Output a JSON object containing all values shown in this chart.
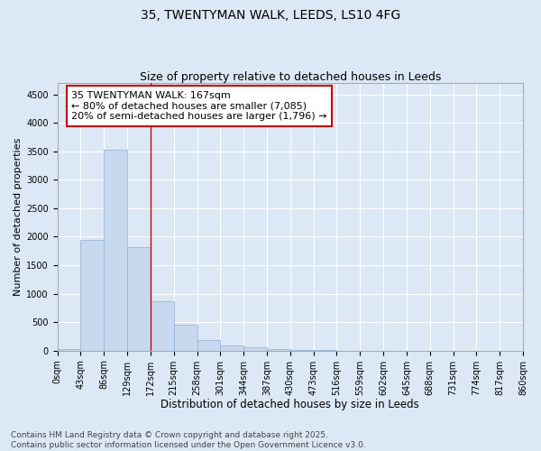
{
  "title_line1": "35, TWENTYMAN WALK, LEEDS, LS10 4FG",
  "title_line2": "Size of property relative to detached houses in Leeds",
  "xlabel": "Distribution of detached houses by size in Leeds",
  "ylabel": "Number of detached properties",
  "bar_edges": [
    0,
    43,
    86,
    129,
    172,
    215,
    258,
    301,
    344,
    387,
    430,
    473,
    516,
    559,
    602,
    645,
    688,
    731,
    774,
    817,
    860
  ],
  "bar_heights": [
    30,
    1950,
    3520,
    1820,
    860,
    450,
    185,
    95,
    55,
    30,
    15,
    5,
    2,
    1,
    0,
    0,
    0,
    0,
    0,
    0
  ],
  "bar_color": "#c8d8ee",
  "bar_edgecolor": "#8ab0d8",
  "background_color": "#dce8f5",
  "grid_color": "#ffffff",
  "vline_x": 172,
  "vline_color": "#cc0000",
  "annotation_text": "35 TWENTYMAN WALK: 167sqm\n← 80% of detached houses are smaller (7,085)\n20% of semi-detached houses are larger (1,796) →",
  "annotation_box_facecolor": "#ffffff",
  "annotation_box_edgecolor": "#cc0000",
  "ylim": [
    0,
    4700
  ],
  "yticks": [
    0,
    500,
    1000,
    1500,
    2000,
    2500,
    3000,
    3500,
    4000,
    4500
  ],
  "footnote": "Contains HM Land Registry data © Crown copyright and database right 2025.\nContains public sector information licensed under the Open Government Licence v3.0.",
  "title_fontsize": 10,
  "subtitle_fontsize": 9,
  "xlabel_fontsize": 8.5,
  "ylabel_fontsize": 8,
  "tick_fontsize": 7,
  "annotation_fontsize": 8,
  "footnote_fontsize": 6.5
}
